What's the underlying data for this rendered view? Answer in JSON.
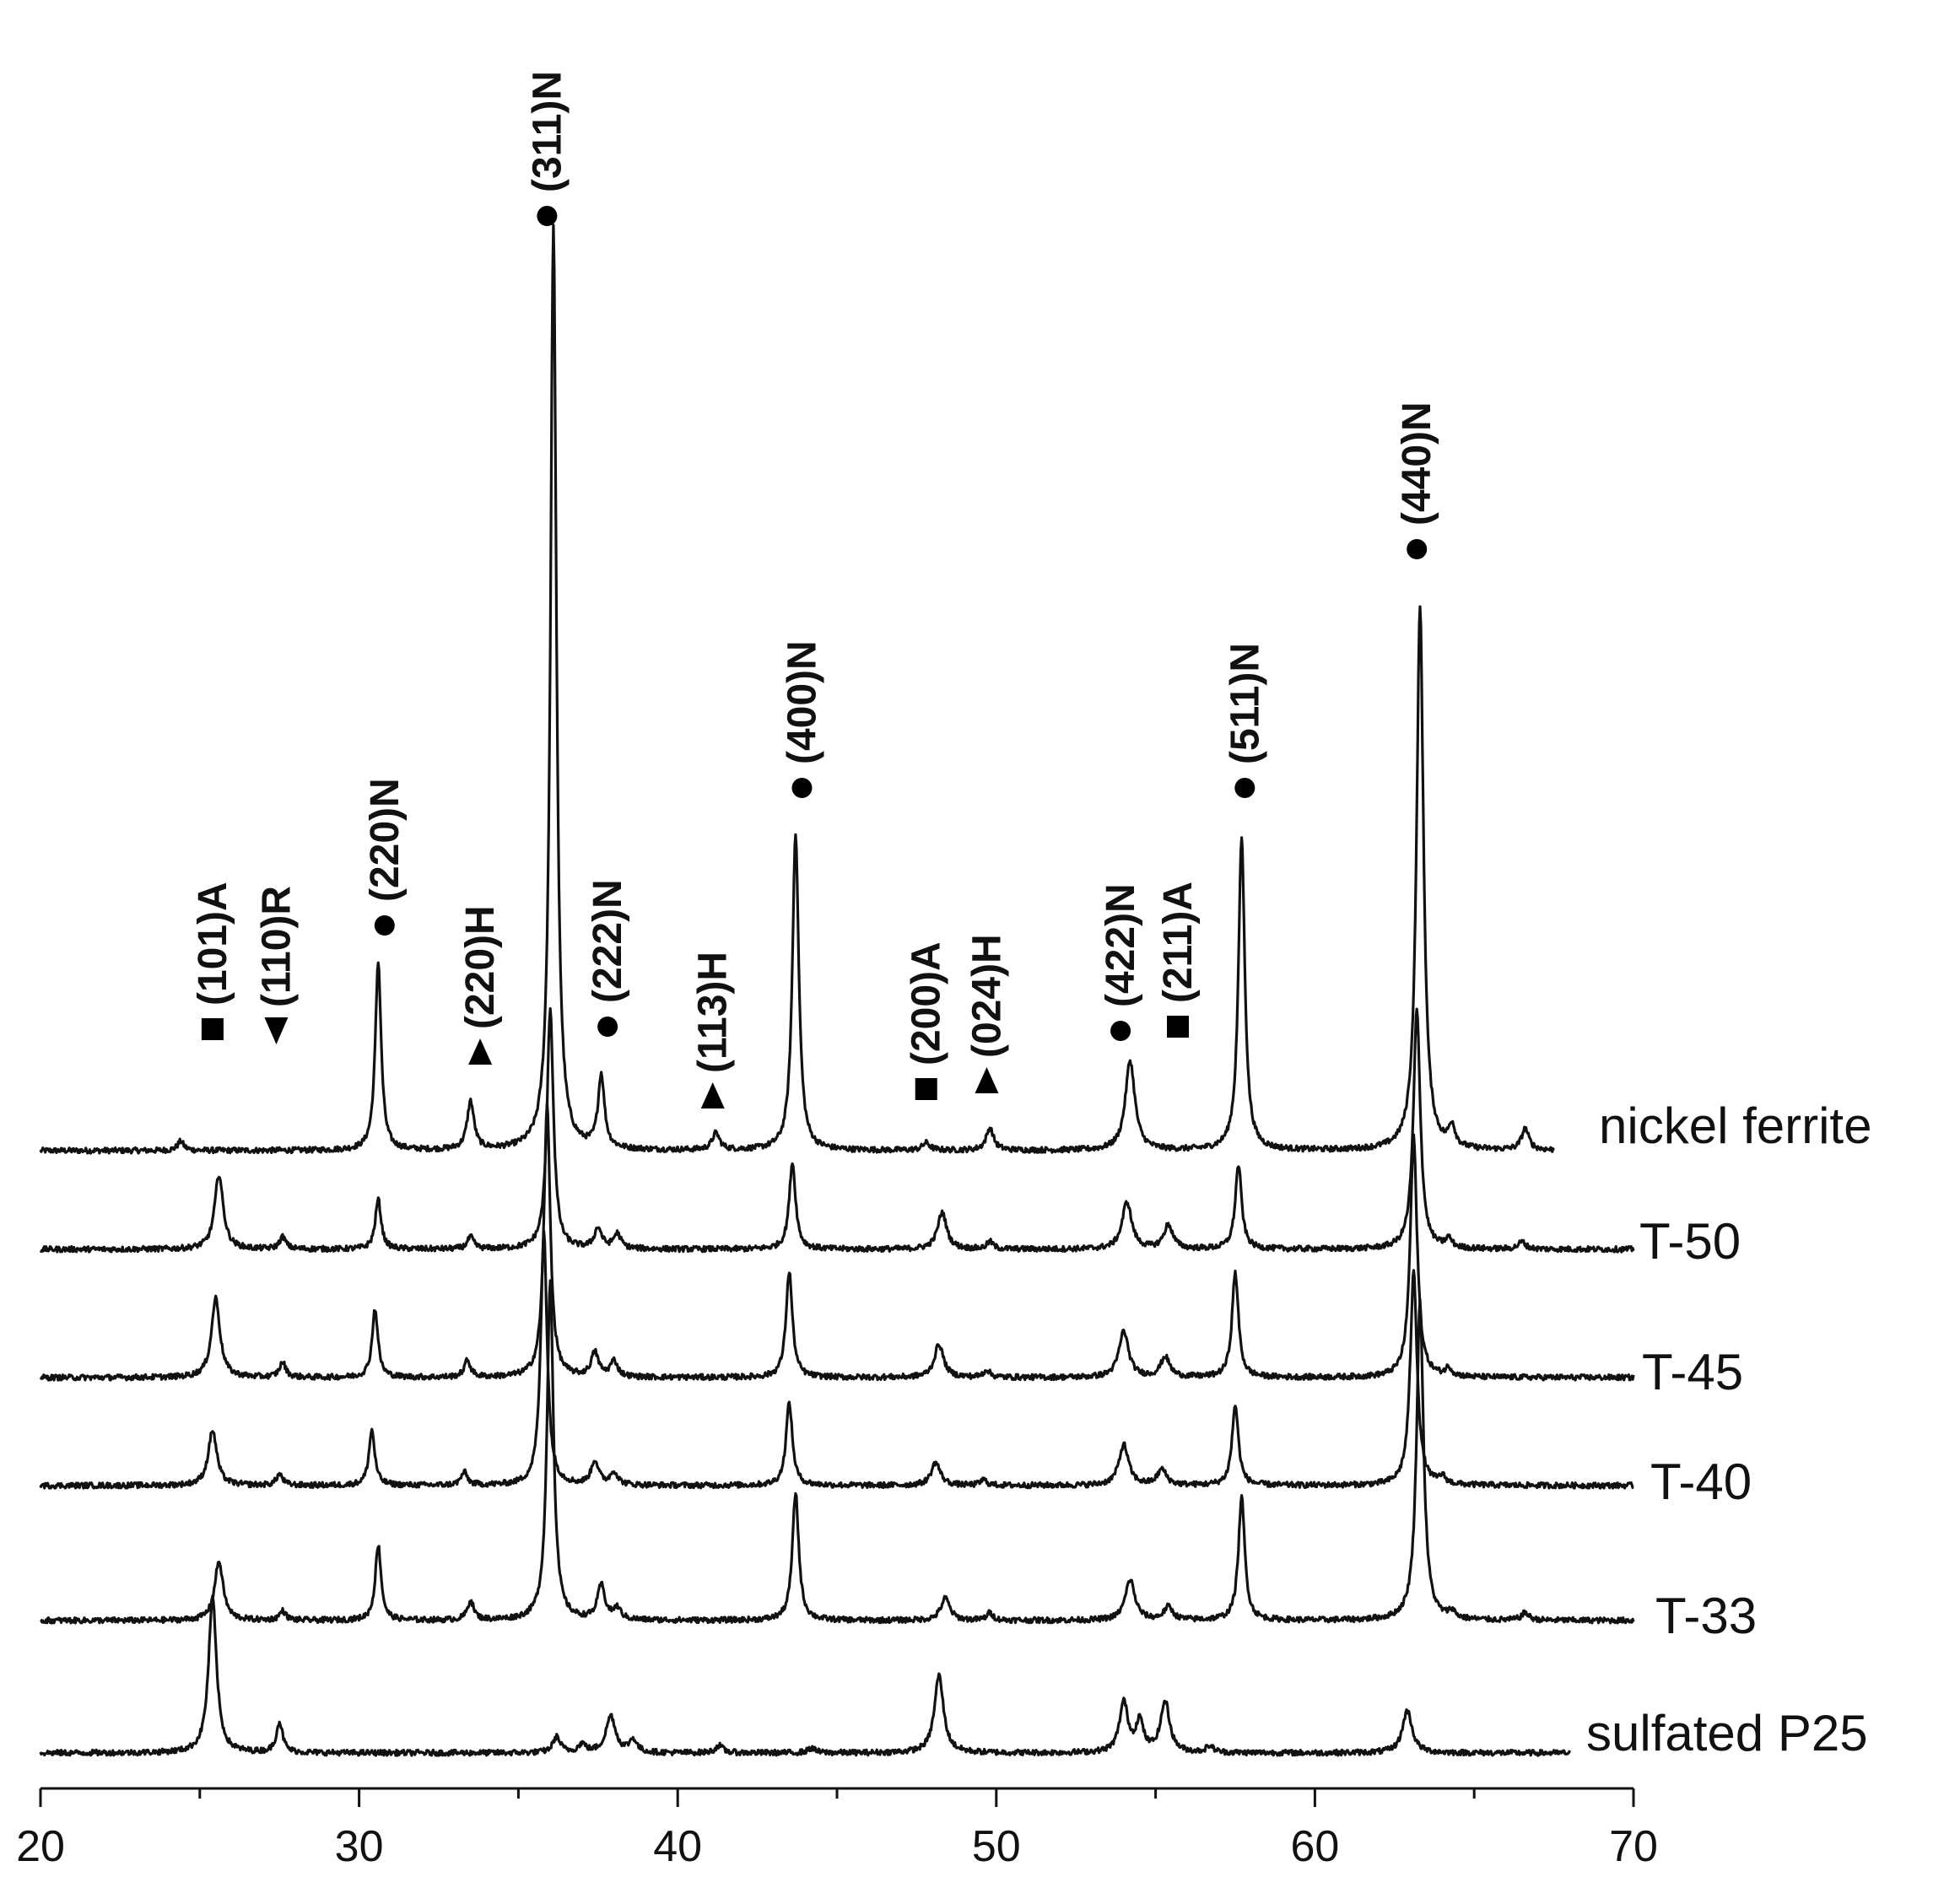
{
  "chart_data": {
    "type": "line",
    "title": "",
    "xlabel": "",
    "ylabel": "",
    "xlim": [
      20,
      70
    ],
    "x_ticks": [
      20,
      30,
      40,
      50,
      60,
      70
    ],
    "x_tick_labels": [
      "20",
      "30",
      "40",
      "50",
      "60",
      "70"
    ],
    "y_axis_visible": false,
    "grid": false,
    "legend": "inline-right",
    "series": [
      {
        "name": "nickel ferrite",
        "x_range": [
          20,
          67.5
        ],
        "peaks": [
          {
            "x": 24.4,
            "h": 0.01,
            "w": 0.12
          },
          {
            "x": 30.6,
            "h": 0.205,
            "w": 0.11
          },
          {
            "x": 33.5,
            "h": 0.052,
            "w": 0.13
          },
          {
            "x": 36.1,
            "h": 1.0,
            "w": 0.11
          },
          {
            "x": 37.6,
            "h": 0.079,
            "w": 0.12
          },
          {
            "x": 41.2,
            "h": 0.018,
            "w": 0.14
          },
          {
            "x": 43.7,
            "h": 0.344,
            "w": 0.12
          },
          {
            "x": 47.8,
            "h": 0.008,
            "w": 0.14
          },
          {
            "x": 49.8,
            "h": 0.024,
            "w": 0.14
          },
          {
            "x": 54.2,
            "h": 0.097,
            "w": 0.18
          },
          {
            "x": 57.7,
            "h": 0.339,
            "w": 0.12
          },
          {
            "x": 63.3,
            "h": 0.588,
            "w": 0.13
          },
          {
            "x": 64.3,
            "h": 0.023,
            "w": 0.12
          },
          {
            "x": 66.6,
            "h": 0.023,
            "w": 0.14
          }
        ]
      },
      {
        "name": "T-50",
        "x_range": [
          20,
          70
        ],
        "peaks": [
          {
            "x": 25.6,
            "h": 0.081,
            "w": 0.16
          },
          {
            "x": 27.6,
            "h": 0.013,
            "w": 0.12
          },
          {
            "x": 30.6,
            "h": 0.054,
            "w": 0.11
          },
          {
            "x": 33.5,
            "h": 0.013,
            "w": 0.12
          },
          {
            "x": 36.0,
            "h": 0.261,
            "w": 0.12
          },
          {
            "x": 37.5,
            "h": 0.022,
            "w": 0.14
          },
          {
            "x": 38.1,
            "h": 0.016,
            "w": 0.14
          },
          {
            "x": 43.6,
            "h": 0.094,
            "w": 0.12
          },
          {
            "x": 48.3,
            "h": 0.04,
            "w": 0.17
          },
          {
            "x": 49.8,
            "h": 0.008,
            "w": 0.12
          },
          {
            "x": 54.1,
            "h": 0.051,
            "w": 0.18
          },
          {
            "x": 55.4,
            "h": 0.026,
            "w": 0.17
          },
          {
            "x": 57.6,
            "h": 0.091,
            "w": 0.12
          },
          {
            "x": 63.2,
            "h": 0.259,
            "w": 0.13
          },
          {
            "x": 64.2,
            "h": 0.01,
            "w": 0.12
          },
          {
            "x": 66.5,
            "h": 0.008,
            "w": 0.14
          }
        ]
      },
      {
        "name": "T-45",
        "x_range": [
          20,
          70
        ],
        "peaks": [
          {
            "x": 25.5,
            "h": 0.086,
            "w": 0.16
          },
          {
            "x": 27.6,
            "h": 0.016,
            "w": 0.12
          },
          {
            "x": 30.5,
            "h": 0.074,
            "w": 0.11
          },
          {
            "x": 33.4,
            "h": 0.018,
            "w": 0.12
          },
          {
            "x": 35.9,
            "h": 0.295,
            "w": 0.12
          },
          {
            "x": 37.4,
            "h": 0.026,
            "w": 0.14
          },
          {
            "x": 38.0,
            "h": 0.017,
            "w": 0.14
          },
          {
            "x": 43.5,
            "h": 0.115,
            "w": 0.12
          },
          {
            "x": 48.2,
            "h": 0.036,
            "w": 0.17
          },
          {
            "x": 49.7,
            "h": 0.008,
            "w": 0.12
          },
          {
            "x": 54.0,
            "h": 0.05,
            "w": 0.18
          },
          {
            "x": 55.3,
            "h": 0.022,
            "w": 0.17
          },
          {
            "x": 57.5,
            "h": 0.114,
            "w": 0.12
          },
          {
            "x": 63.1,
            "h": 0.26,
            "w": 0.13
          },
          {
            "x": 64.2,
            "h": 0.009,
            "w": 0.12
          }
        ]
      },
      {
        "name": "T-40",
        "x_range": [
          20,
          70
        ],
        "peaks": [
          {
            "x": 25.4,
            "h": 0.06,
            "w": 0.16
          },
          {
            "x": 27.5,
            "h": 0.012,
            "w": 0.12
          },
          {
            "x": 30.4,
            "h": 0.06,
            "w": 0.11
          },
          {
            "x": 33.3,
            "h": 0.014,
            "w": 0.12
          },
          {
            "x": 35.8,
            "h": 0.275,
            "w": 0.12
          },
          {
            "x": 37.4,
            "h": 0.026,
            "w": 0.14
          },
          {
            "x": 38.0,
            "h": 0.014,
            "w": 0.14
          },
          {
            "x": 43.5,
            "h": 0.09,
            "w": 0.12
          },
          {
            "x": 48.1,
            "h": 0.025,
            "w": 0.17
          },
          {
            "x": 49.6,
            "h": 0.006,
            "w": 0.12
          },
          {
            "x": 54.0,
            "h": 0.044,
            "w": 0.18
          },
          {
            "x": 55.2,
            "h": 0.017,
            "w": 0.17
          },
          {
            "x": 57.5,
            "h": 0.087,
            "w": 0.12
          },
          {
            "x": 63.1,
            "h": 0.231,
            "w": 0.13
          },
          {
            "x": 64.0,
            "h": 0.008,
            "w": 0.12
          }
        ]
      },
      {
        "name": "T-33",
        "x_range": [
          20,
          70
        ],
        "peaks": [
          {
            "x": 25.6,
            "h": 0.064,
            "w": 0.16
          },
          {
            "x": 27.6,
            "h": 0.01,
            "w": 0.12
          },
          {
            "x": 30.6,
            "h": 0.082,
            "w": 0.11
          },
          {
            "x": 33.5,
            "h": 0.021,
            "w": 0.12
          },
          {
            "x": 36.0,
            "h": 0.369,
            "w": 0.12
          },
          {
            "x": 37.6,
            "h": 0.037,
            "w": 0.14
          },
          {
            "x": 38.1,
            "h": 0.012,
            "w": 0.14
          },
          {
            "x": 43.7,
            "h": 0.138,
            "w": 0.12
          },
          {
            "x": 48.4,
            "h": 0.024,
            "w": 0.17
          },
          {
            "x": 49.8,
            "h": 0.008,
            "w": 0.12
          },
          {
            "x": 54.2,
            "h": 0.044,
            "w": 0.18
          },
          {
            "x": 55.4,
            "h": 0.014,
            "w": 0.17
          },
          {
            "x": 57.7,
            "h": 0.133,
            "w": 0.12
          },
          {
            "x": 63.3,
            "h": 0.345,
            "w": 0.13
          },
          {
            "x": 64.3,
            "h": 0.008,
            "w": 0.12
          },
          {
            "x": 66.6,
            "h": 0.008,
            "w": 0.14
          }
        ]
      },
      {
        "name": "sulfated P25",
        "x_range": [
          20,
          68
        ],
        "peaks": [
          {
            "x": 25.4,
            "h": 0.168,
            "w": 0.15
          },
          {
            "x": 27.5,
            "h": 0.033,
            "w": 0.12
          },
          {
            "x": 36.2,
            "h": 0.017,
            "w": 0.14
          },
          {
            "x": 37.0,
            "h": 0.009,
            "w": 0.14
          },
          {
            "x": 37.9,
            "h": 0.04,
            "w": 0.18
          },
          {
            "x": 38.6,
            "h": 0.014,
            "w": 0.14
          },
          {
            "x": 41.3,
            "h": 0.008,
            "w": 0.14
          },
          {
            "x": 44.2,
            "h": 0.005,
            "w": 0.14
          },
          {
            "x": 48.2,
            "h": 0.084,
            "w": 0.17
          },
          {
            "x": 54.0,
            "h": 0.054,
            "w": 0.16
          },
          {
            "x": 54.5,
            "h": 0.033,
            "w": 0.14
          },
          {
            "x": 55.3,
            "h": 0.055,
            "w": 0.17
          },
          {
            "x": 56.7,
            "h": 0.007,
            "w": 0.14
          },
          {
            "x": 62.9,
            "h": 0.046,
            "w": 0.18
          }
        ]
      }
    ],
    "annotations": [
      {
        "label": "(101)A",
        "marker": "square",
        "x": 25.4
      },
      {
        "label": "(110)R",
        "marker": "triangle-down",
        "x": 27.4
      },
      {
        "label": "(220)N",
        "marker": "circle",
        "x": 30.8
      },
      {
        "label": "(220)H",
        "marker": "triangle-up",
        "x": 33.8
      },
      {
        "label": "(311)N",
        "marker": "circle",
        "x": 35.9
      },
      {
        "label": "(222)N",
        "marker": "circle",
        "x": 37.8
      },
      {
        "label": "(113)H",
        "marker": "triangle-up",
        "x": 41.1
      },
      {
        "label": "(400)N",
        "marker": "circle",
        "x": 43.9
      },
      {
        "label": "(200)A",
        "marker": "square",
        "x": 47.8
      },
      {
        "label": "(024)H",
        "marker": "triangle-up",
        "x": 49.7
      },
      {
        "label": "(422)N",
        "marker": "circle",
        "x": 53.9
      },
      {
        "label": "(211)A",
        "marker": "square",
        "x": 55.7
      },
      {
        "label": "(511)N",
        "marker": "circle",
        "x": 57.8
      },
      {
        "label": "(440)N",
        "marker": "circle",
        "x": 63.2
      }
    ]
  }
}
